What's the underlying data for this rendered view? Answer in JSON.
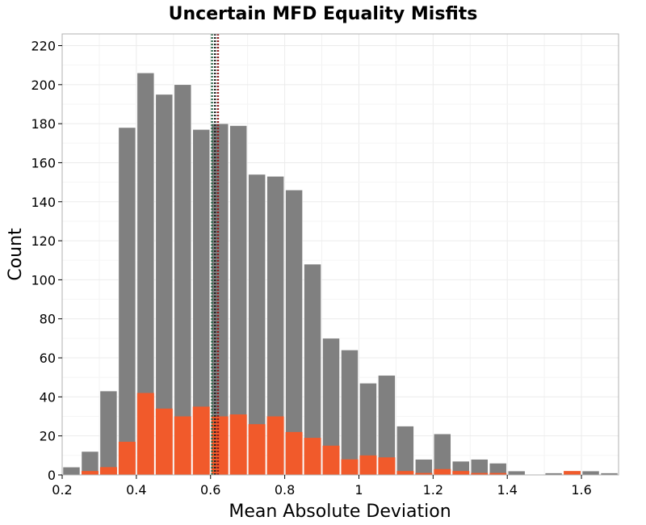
{
  "chart_data": {
    "type": "bar",
    "title": "Uncertain MFD Equality Misfits",
    "xlabel": "Mean Absolute Deviation",
    "ylabel": "Count",
    "xlim": [
      0.2,
      1.7
    ],
    "ylim": [
      0,
      226
    ],
    "xticks": [
      0.2,
      0.4,
      0.6,
      0.8,
      1,
      1.2,
      1.4,
      1.6
    ],
    "xtick_labels": [
      "0.2",
      "0.4",
      "0.6",
      "0.8",
      "1",
      "1.2",
      "1.4",
      "1.6"
    ],
    "yticks": [
      0,
      20,
      40,
      60,
      80,
      100,
      120,
      140,
      160,
      180,
      200,
      220
    ],
    "ytick_labels": [
      "0",
      "20",
      "40",
      "60",
      "80",
      "100",
      "120",
      "140",
      "160",
      "180",
      "200",
      "220"
    ],
    "grid": true,
    "bin_width": 0.05,
    "bin_starts": [
      0.2,
      0.25,
      0.3,
      0.35,
      0.4,
      0.45,
      0.5,
      0.55,
      0.6,
      0.65,
      0.7,
      0.75,
      0.8,
      0.85,
      0.9,
      0.95,
      1.0,
      1.05,
      1.1,
      1.15,
      1.2,
      1.25,
      1.3,
      1.35,
      1.4,
      1.45,
      1.5,
      1.55,
      1.6,
      1.65
    ],
    "series": [
      {
        "color": "#808080",
        "values": [
          4,
          12,
          43,
          178,
          206,
          195,
          200,
          177,
          180,
          179,
          154,
          153,
          146,
          108,
          70,
          64,
          47,
          51,
          25,
          8,
          21,
          7,
          8,
          6,
          2,
          0,
          1,
          2,
          2,
          1
        ]
      },
      {
        "color": "#f15a2b",
        "values": [
          0,
          2,
          4,
          17,
          42,
          34,
          30,
          35,
          30,
          31,
          26,
          30,
          22,
          19,
          15,
          8,
          10,
          9,
          2,
          1,
          3,
          2,
          1,
          1,
          0,
          0,
          0,
          2,
          0,
          0
        ]
      }
    ],
    "reference_lines": [
      {
        "x": 0.604,
        "color": "#2e6b4b",
        "style": "dotted"
      },
      {
        "x": 0.612,
        "color": "#222222",
        "style": "dotted"
      },
      {
        "x": 0.62,
        "color": "#8b1a1a",
        "style": "dotted"
      }
    ]
  }
}
